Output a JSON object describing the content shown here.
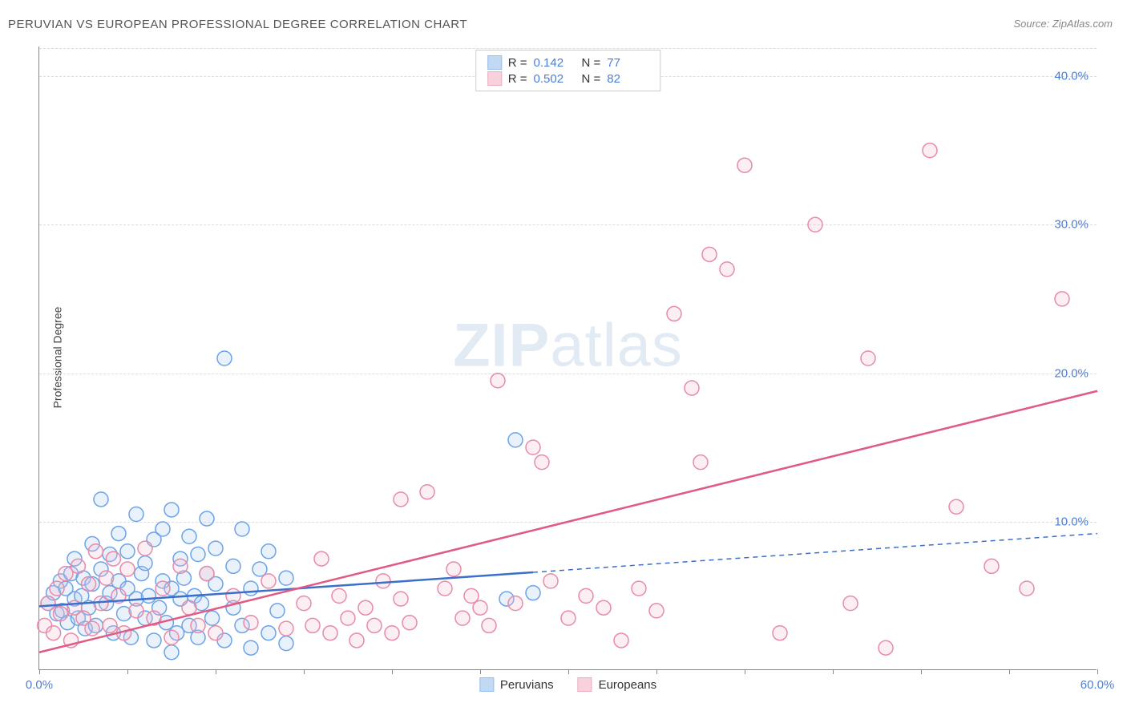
{
  "title": "PERUVIAN VS EUROPEAN PROFESSIONAL DEGREE CORRELATION CHART",
  "source": "Source: ZipAtlas.com",
  "y_axis_label": "Professional Degree",
  "watermark": {
    "bold": "ZIP",
    "rest": "atlas"
  },
  "chart": {
    "type": "scatter",
    "xlim": [
      0,
      60
    ],
    "ylim": [
      0,
      42
    ],
    "x_ticks": [
      0,
      5,
      10,
      15,
      20,
      25,
      30,
      35,
      40,
      45,
      50,
      55,
      60
    ],
    "x_tick_labels": {
      "0": "0.0%",
      "60": "60.0%"
    },
    "y_gridlines": [
      10,
      20,
      30,
      40
    ],
    "y_tick_labels": {
      "10": "10.0%",
      "20": "20.0%",
      "30": "30.0%",
      "40": "40.0%"
    },
    "background_color": "#ffffff",
    "grid_color": "#dddddd",
    "axis_color": "#888888",
    "ytick_label_color": "#4a7fd8",
    "marker_radius": 9,
    "marker_stroke_width": 1.5,
    "marker_fill_opacity": 0.25,
    "series": [
      {
        "name": "Peruvians",
        "color_stroke": "#6ba3e8",
        "color_fill": "#a9c9f0",
        "R": "0.142",
        "N": "77",
        "trend": {
          "x1": 0,
          "y1": 4.3,
          "x2": 28,
          "y2": 6.6,
          "x3": 60,
          "y3": 9.2,
          "solid_until_x": 28,
          "stroke": "#3b6fc9",
          "stroke_width": 2.5
        },
        "points": [
          [
            0.5,
            4.5
          ],
          [
            0.8,
            5.2
          ],
          [
            1.0,
            3.8
          ],
          [
            1.2,
            6.0
          ],
          [
            1.3,
            4.0
          ],
          [
            1.5,
            5.5
          ],
          [
            1.6,
            3.2
          ],
          [
            1.8,
            6.5
          ],
          [
            2.0,
            4.8
          ],
          [
            2.0,
            7.5
          ],
          [
            2.2,
            3.5
          ],
          [
            2.4,
            5.0
          ],
          [
            2.5,
            6.2
          ],
          [
            2.6,
            2.8
          ],
          [
            2.8,
            4.2
          ],
          [
            3.0,
            5.8
          ],
          [
            3.0,
            8.5
          ],
          [
            3.2,
            3.0
          ],
          [
            3.5,
            6.8
          ],
          [
            3.5,
            11.5
          ],
          [
            3.8,
            4.5
          ],
          [
            4.0,
            5.2
          ],
          [
            4.0,
            7.8
          ],
          [
            4.2,
            2.5
          ],
          [
            4.5,
            6.0
          ],
          [
            4.5,
            9.2
          ],
          [
            4.8,
            3.8
          ],
          [
            5.0,
            5.5
          ],
          [
            5.0,
            8.0
          ],
          [
            5.2,
            2.2
          ],
          [
            5.5,
            4.8
          ],
          [
            5.5,
            10.5
          ],
          [
            5.8,
            6.5
          ],
          [
            6.0,
            3.5
          ],
          [
            6.0,
            7.2
          ],
          [
            6.2,
            5.0
          ],
          [
            6.5,
            2.0
          ],
          [
            6.5,
            8.8
          ],
          [
            6.8,
            4.2
          ],
          [
            7.0,
            6.0
          ],
          [
            7.0,
            9.5
          ],
          [
            7.2,
            3.2
          ],
          [
            7.5,
            5.5
          ],
          [
            7.5,
            10.8
          ],
          [
            7.8,
            2.5
          ],
          [
            8.0,
            4.8
          ],
          [
            8.0,
            7.5
          ],
          [
            8.2,
            6.2
          ],
          [
            8.5,
            3.0
          ],
          [
            8.5,
            9.0
          ],
          [
            8.8,
            5.0
          ],
          [
            9.0,
            2.2
          ],
          [
            9.0,
            7.8
          ],
          [
            9.2,
            4.5
          ],
          [
            9.5,
            6.5
          ],
          [
            9.5,
            10.2
          ],
          [
            9.8,
            3.5
          ],
          [
            10.0,
            5.8
          ],
          [
            10.0,
            8.2
          ],
          [
            10.5,
            2.0
          ],
          [
            10.5,
            21.0
          ],
          [
            11.0,
            4.2
          ],
          [
            11.0,
            7.0
          ],
          [
            11.5,
            3.0
          ],
          [
            11.5,
            9.5
          ],
          [
            12.0,
            5.5
          ],
          [
            12.0,
            1.5
          ],
          [
            12.5,
            6.8
          ],
          [
            13.0,
            2.5
          ],
          [
            13.0,
            8.0
          ],
          [
            13.5,
            4.0
          ],
          [
            14.0,
            1.8
          ],
          [
            14.0,
            6.2
          ],
          [
            26.5,
            4.8
          ],
          [
            27.0,
            15.5
          ],
          [
            28.0,
            5.2
          ],
          [
            7.5,
            1.2
          ]
        ]
      },
      {
        "name": "Europeans",
        "color_stroke": "#e88aa8",
        "color_fill": "#f4c0d0",
        "R": "0.502",
        "N": "82",
        "trend": {
          "x1": 0,
          "y1": 1.2,
          "x2": 60,
          "y2": 18.8,
          "solid_until_x": 60,
          "stroke": "#e05a84",
          "stroke_width": 2.5
        },
        "points": [
          [
            0.3,
            3.0
          ],
          [
            0.5,
            4.5
          ],
          [
            0.8,
            2.5
          ],
          [
            1.0,
            5.5
          ],
          [
            1.2,
            3.8
          ],
          [
            1.5,
            6.5
          ],
          [
            1.8,
            2.0
          ],
          [
            2.0,
            4.2
          ],
          [
            2.2,
            7.0
          ],
          [
            2.5,
            3.5
          ],
          [
            2.8,
            5.8
          ],
          [
            3.0,
            2.8
          ],
          [
            3.2,
            8.0
          ],
          [
            3.5,
            4.5
          ],
          [
            3.8,
            6.2
          ],
          [
            4.0,
            3.0
          ],
          [
            4.2,
            7.5
          ],
          [
            4.5,
            5.0
          ],
          [
            4.8,
            2.5
          ],
          [
            5.0,
            6.8
          ],
          [
            5.5,
            4.0
          ],
          [
            6.0,
            8.2
          ],
          [
            6.5,
            3.5
          ],
          [
            7.0,
            5.5
          ],
          [
            7.5,
            2.2
          ],
          [
            8.0,
            7.0
          ],
          [
            8.5,
            4.2
          ],
          [
            9.0,
            3.0
          ],
          [
            9.5,
            6.5
          ],
          [
            10.0,
            2.5
          ],
          [
            11.0,
            5.0
          ],
          [
            12.0,
            3.2
          ],
          [
            13.0,
            6.0
          ],
          [
            14.0,
            2.8
          ],
          [
            15.0,
            4.5
          ],
          [
            15.5,
            3.0
          ],
          [
            16.0,
            7.5
          ],
          [
            16.5,
            2.5
          ],
          [
            17.0,
            5.0
          ],
          [
            17.5,
            3.5
          ],
          [
            18.0,
            2.0
          ],
          [
            18.5,
            4.2
          ],
          [
            19.0,
            3.0
          ],
          [
            19.5,
            6.0
          ],
          [
            20.0,
            2.5
          ],
          [
            20.5,
            4.8
          ],
          [
            20.5,
            11.5
          ],
          [
            21.0,
            3.2
          ],
          [
            22.0,
            12.0
          ],
          [
            23.0,
            5.5
          ],
          [
            23.5,
            6.8
          ],
          [
            24.0,
            3.5
          ],
          [
            24.5,
            5.0
          ],
          [
            25.0,
            4.2
          ],
          [
            25.5,
            3.0
          ],
          [
            26.0,
            19.5
          ],
          [
            27.0,
            4.5
          ],
          [
            28.0,
            15.0
          ],
          [
            28.5,
            14.0
          ],
          [
            29.0,
            6.0
          ],
          [
            30.0,
            3.5
          ],
          [
            31.0,
            5.0
          ],
          [
            32.0,
            4.2
          ],
          [
            33.0,
            2.0
          ],
          [
            34.0,
            5.5
          ],
          [
            35.0,
            4.0
          ],
          [
            36.0,
            24.0
          ],
          [
            37.0,
            19.0
          ],
          [
            37.5,
            14.0
          ],
          [
            38.0,
            28.0
          ],
          [
            39.0,
            27.0
          ],
          [
            40.0,
            34.0
          ],
          [
            42.0,
            2.5
          ],
          [
            44.0,
            30.0
          ],
          [
            46.0,
            4.5
          ],
          [
            47.0,
            21.0
          ],
          [
            48.0,
            1.5
          ],
          [
            50.5,
            35.0
          ],
          [
            52.0,
            11.0
          ],
          [
            54.0,
            7.0
          ],
          [
            56.0,
            5.5
          ],
          [
            58.0,
            25.0
          ]
        ]
      }
    ],
    "legend_bottom": [
      {
        "label": "Peruvians",
        "stroke": "#6ba3e8",
        "fill": "#a9c9f0"
      },
      {
        "label": "Europeans",
        "stroke": "#e88aa8",
        "fill": "#f4c0d0"
      }
    ],
    "stats_labels": {
      "R": "R =",
      "N": "N ="
    }
  }
}
